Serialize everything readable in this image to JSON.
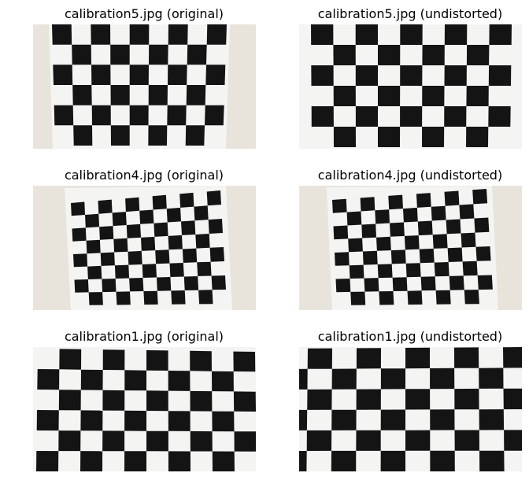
{
  "panels": [
    {
      "title": "calibration5.jpg (original)"
    },
    {
      "title": "calibration5.jpg (undistorted)"
    },
    {
      "title": "calibration4.jpg (original)"
    },
    {
      "title": "calibration4.jpg (undistorted)"
    },
    {
      "title": "calibration1.jpg (original)"
    },
    {
      "title": "calibration1.jpg (undistorted)"
    }
  ],
  "colors": {
    "background": "#e8e4dc",
    "paper": "#f4f4f2",
    "square": "#141414"
  }
}
